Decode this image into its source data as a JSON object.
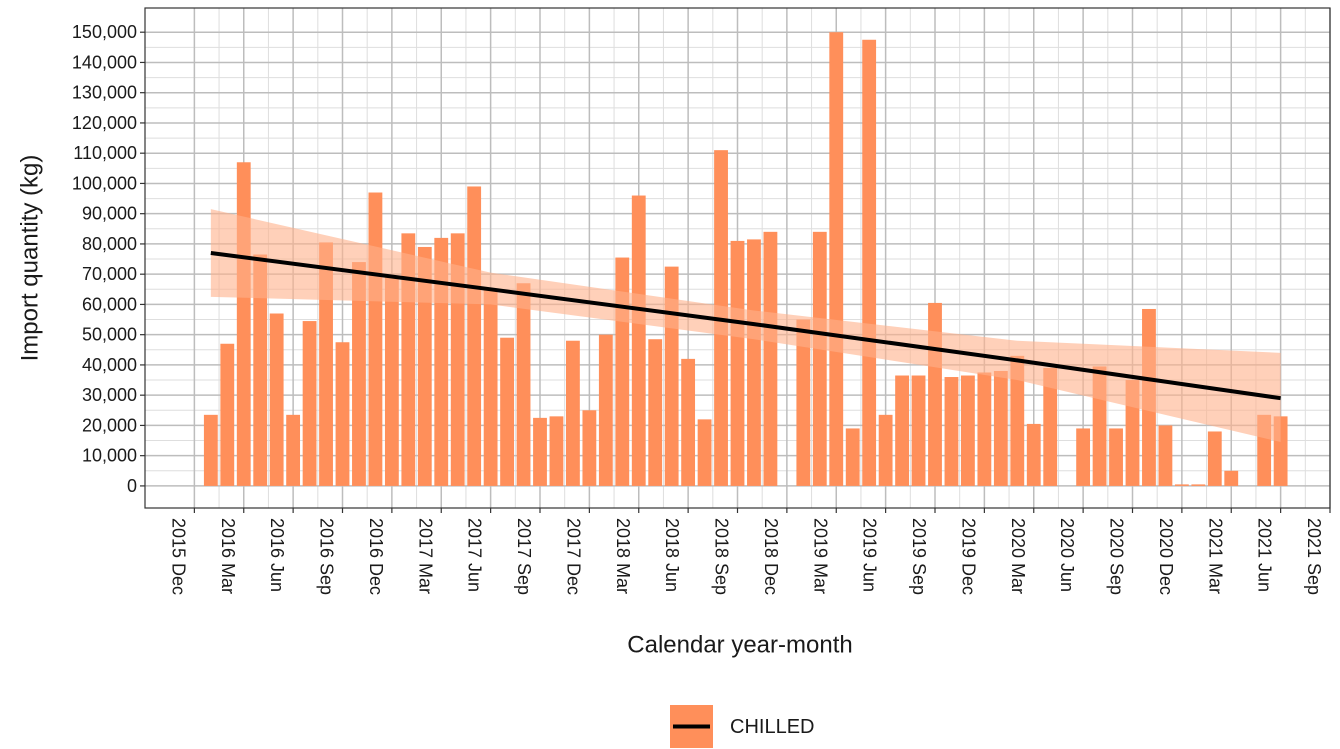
{
  "chart_data": {
    "type": "bar",
    "x_label": "Calendar year-month",
    "y_label": "Import quantity (kg)",
    "x": [
      "2016-01",
      "2016-02",
      "2016-03",
      "2016-04",
      "2016-05",
      "2016-06",
      "2016-07",
      "2016-08",
      "2016-09",
      "2016-10",
      "2016-11",
      "2016-12",
      "2017-01",
      "2017-02",
      "2017-03",
      "2017-04",
      "2017-05",
      "2017-06",
      "2017-07",
      "2017-08",
      "2017-09",
      "2017-10",
      "2017-11",
      "2017-12",
      "2018-01",
      "2018-02",
      "2018-03",
      "2018-04",
      "2018-05",
      "2018-06",
      "2018-07",
      "2018-08",
      "2018-09",
      "2018-10",
      "2018-11",
      "2018-12",
      "2019-01",
      "2019-02",
      "2019-03",
      "2019-04",
      "2019-05",
      "2019-06",
      "2019-07",
      "2019-08",
      "2019-09",
      "2019-10",
      "2019-11",
      "2019-12",
      "2020-01",
      "2020-02",
      "2020-03",
      "2020-04",
      "2020-05",
      "2020-06",
      "2020-07",
      "2020-08",
      "2020-09",
      "2020-10",
      "2020-11",
      "2020-12",
      "2021-01",
      "2021-02",
      "2021-03",
      "2021-04",
      "2021-05",
      "2021-06"
    ],
    "series": [
      {
        "name": "CHILLED",
        "color": "#ff8f5a",
        "values": [
          23500,
          47000,
          107000,
          76500,
          57000,
          23500,
          54500,
          80500,
          47500,
          74000,
          97000,
          69000,
          83500,
          79000,
          82000,
          83500,
          99000,
          65000,
          49000,
          67000,
          22500,
          23000,
          48000,
          25000,
          50000,
          75500,
          96000,
          48500,
          72500,
          42000,
          22000,
          111000,
          81000,
          81500,
          84000,
          null,
          55000,
          84000,
          150000,
          19000,
          147500,
          23500,
          36500,
          36500,
          60500,
          36000,
          36500,
          37500,
          38000,
          43000,
          20500,
          39000,
          null,
          19000,
          39500,
          19000,
          35000,
          58500,
          20000,
          500,
          500,
          18000,
          5000,
          null,
          23500,
          23000
        ]
      }
    ],
    "trend": {
      "color": "#000000",
      "band_color": "#ffb08a",
      "x": [
        "2016-01",
        "2017-06",
        "2018-10",
        "2020-02",
        "2021-06"
      ],
      "values": [
        77000,
        65000,
        53500,
        41500,
        29000
      ],
      "lower": [
        62500,
        60000,
        48500,
        35000,
        14500
      ],
      "upper": [
        91500,
        70500,
        58000,
        48000,
        44000
      ]
    },
    "xlim": [
      "2015-09",
      "2021-09"
    ],
    "xticks": [
      {
        "value": "2015-12",
        "label": "2015 Dec"
      },
      {
        "value": "2016-03",
        "label": "2016 Mar"
      },
      {
        "value": "2016-06",
        "label": "2016 Jun"
      },
      {
        "value": "2016-09",
        "label": "2016 Sep"
      },
      {
        "value": "2016-12",
        "label": "2016 Dec"
      },
      {
        "value": "2017-03",
        "label": "2017 Mar"
      },
      {
        "value": "2017-06",
        "label": "2017 Jun"
      },
      {
        "value": "2017-09",
        "label": "2017 Sep"
      },
      {
        "value": "2017-12",
        "label": "2017 Dec"
      },
      {
        "value": "2018-03",
        "label": "2018 Mar"
      },
      {
        "value": "2018-06",
        "label": "2018 Jun"
      },
      {
        "value": "2018-09",
        "label": "2018 Sep"
      },
      {
        "value": "2018-12",
        "label": "2018 Dec"
      },
      {
        "value": "2019-03",
        "label": "2019 Mar"
      },
      {
        "value": "2019-06",
        "label": "2019 Jun"
      },
      {
        "value": "2019-09",
        "label": "2019 Sep"
      },
      {
        "value": "2019-12",
        "label": "2019 Dec"
      },
      {
        "value": "2020-03",
        "label": "2020 Mar"
      },
      {
        "value": "2020-06",
        "label": "2020 Jun"
      },
      {
        "value": "2020-09",
        "label": "2020 Sep"
      },
      {
        "value": "2020-12",
        "label": "2020 Dec"
      },
      {
        "value": "2021-03",
        "label": "2021 Mar"
      },
      {
        "value": "2021-06",
        "label": "2021 Jun"
      },
      {
        "value": "2021-09",
        "label": "2021 Sep"
      }
    ],
    "ylim": [
      -7300,
      158000
    ],
    "yticks": [
      0,
      {
        "value": 10000,
        "label": "10,000"
      },
      {
        "value": 20000,
        "label": "20,000"
      },
      {
        "value": 30000,
        "label": "30,000"
      },
      {
        "value": 40000,
        "label": "40,000"
      },
      {
        "value": 50000,
        "label": "50,000"
      },
      {
        "value": 60000,
        "label": "60,000"
      },
      {
        "value": 70000,
        "label": "70,000"
      },
      {
        "value": 80000,
        "label": "80,000"
      },
      {
        "value": 90000,
        "label": "90,000"
      },
      {
        "value": 100000,
        "label": "100,000"
      },
      {
        "value": 110000,
        "label": "110,000"
      },
      {
        "value": 120000,
        "label": "120,000"
      },
      {
        "value": 130000,
        "label": "130,000"
      },
      {
        "value": 140000,
        "label": "140,000"
      },
      {
        "value": 150000,
        "label": "150,000"
      }
    ],
    "grid": true,
    "legend": "bottom"
  }
}
